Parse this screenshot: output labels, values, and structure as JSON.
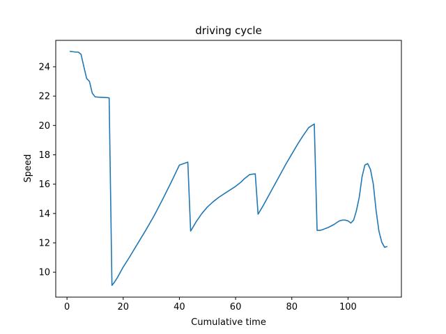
{
  "chart_data": {
    "type": "line",
    "title": "driving cycle",
    "xlabel": "Cumulative time",
    "ylabel": "Speed",
    "xlim": [
      -4,
      119
    ],
    "ylim": [
      8.3,
      25.8
    ],
    "xticks": [
      0,
      20,
      40,
      60,
      80,
      100
    ],
    "yticks": [
      10,
      12,
      14,
      16,
      18,
      20,
      22,
      24
    ],
    "grid": false,
    "legend": "none",
    "series": [
      {
        "color": "#1f77b4",
        "x": [
          1,
          2,
          3,
          4,
          5,
          6,
          7,
          8,
          9,
          10,
          11,
          12,
          13,
          14,
          15,
          16,
          17,
          18,
          19,
          20,
          22,
          25,
          28,
          31,
          34,
          37,
          40,
          43,
          44,
          46,
          48,
          50,
          52,
          54,
          56,
          58,
          60,
          62,
          63,
          64,
          65,
          66,
          67,
          68,
          70,
          72,
          74,
          76,
          78,
          80,
          82,
          84,
          86,
          88,
          89,
          90,
          91,
          92,
          93,
          94,
          95,
          96,
          97,
          98,
          99,
          100,
          101,
          102,
          103,
          104,
          105,
          106,
          107,
          108,
          109,
          110,
          111,
          112,
          113,
          114
        ],
        "y": [
          25.05,
          25.03,
          25.0,
          25.0,
          24.85,
          24.0,
          23.2,
          23.0,
          22.2,
          21.95,
          21.93,
          21.92,
          21.91,
          21.9,
          21.88,
          9.1,
          9.35,
          9.65,
          10.0,
          10.35,
          10.95,
          11.9,
          12.85,
          13.85,
          14.95,
          16.1,
          17.3,
          17.5,
          12.8,
          13.45,
          14.0,
          14.45,
          14.8,
          15.1,
          15.35,
          15.6,
          15.85,
          16.15,
          16.35,
          16.5,
          16.65,
          16.68,
          16.7,
          13.95,
          14.6,
          15.3,
          16.0,
          16.7,
          17.4,
          18.05,
          18.7,
          19.3,
          19.85,
          20.1,
          12.85,
          12.85,
          12.9,
          12.98,
          13.05,
          13.15,
          13.25,
          13.38,
          13.5,
          13.55,
          13.55,
          13.5,
          13.35,
          13.55,
          14.2,
          15.1,
          16.5,
          17.3,
          17.4,
          17.0,
          16.0,
          14.2,
          12.8,
          12.05,
          11.7,
          11.75
        ]
      }
    ]
  }
}
